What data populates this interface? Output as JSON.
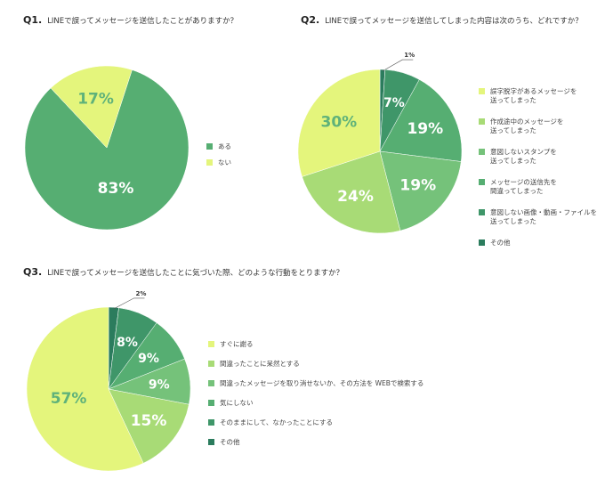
{
  "colors": [
    "#e4f57c",
    "#a8db76",
    "#75c27a",
    "#56ae72",
    "#3f9669",
    "#2b7c5d"
  ],
  "chart_data": [
    {
      "type": "pie",
      "qnum": "Q1.",
      "title": "LINEで誤ってメッセージを送信したことがありますか？",
      "categories": [
        "ある",
        "ない"
      ],
      "values": [
        83,
        17
      ],
      "labels": [
        "83%",
        "17%"
      ],
      "start": 18,
      "color_idx": [
        3,
        0
      ]
    },
    {
      "type": "pie",
      "qnum": "Q2.",
      "title": "LINEで誤ってメッセージを送信してしまった内容は次のうち、どれですか？",
      "categories": [
        "誤字脱字があるメッセージを\n送ってしまった",
        "作成途中のメッセージを\n送ってしまった",
        "意図しないスタンプを\n送ってしまった",
        "メッセージの送信先を\n間違ってしまった",
        "意図しない画像・動画・ファイルを\n送ってしまった",
        "その他"
      ],
      "values": [
        30,
        24,
        19,
        19,
        7,
        1
      ],
      "labels": [
        "30%",
        "24%",
        "19%",
        "19%",
        "7%",
        "1%"
      ],
      "color_idx": [
        0,
        1,
        2,
        3,
        4,
        5
      ]
    },
    {
      "type": "pie",
      "qnum": "Q3.",
      "title": "LINEで誤ってメッセージを送信したことに気づいた際、どのような行動をとりますか？",
      "categories": [
        "すぐに謝る",
        "間違ったことに呆然とする",
        "間違ったメッセージを取り消せないか、その方法を WEBで検索する",
        "気にしない",
        "そのままにして、なかったことにする",
        "その他"
      ],
      "values": [
        57,
        15,
        9,
        9,
        8,
        2
      ],
      "labels": [
        "57%",
        "15%",
        "9%",
        "9%",
        "8%",
        "2%"
      ],
      "color_idx": [
        0,
        1,
        2,
        3,
        4,
        5
      ]
    }
  ]
}
